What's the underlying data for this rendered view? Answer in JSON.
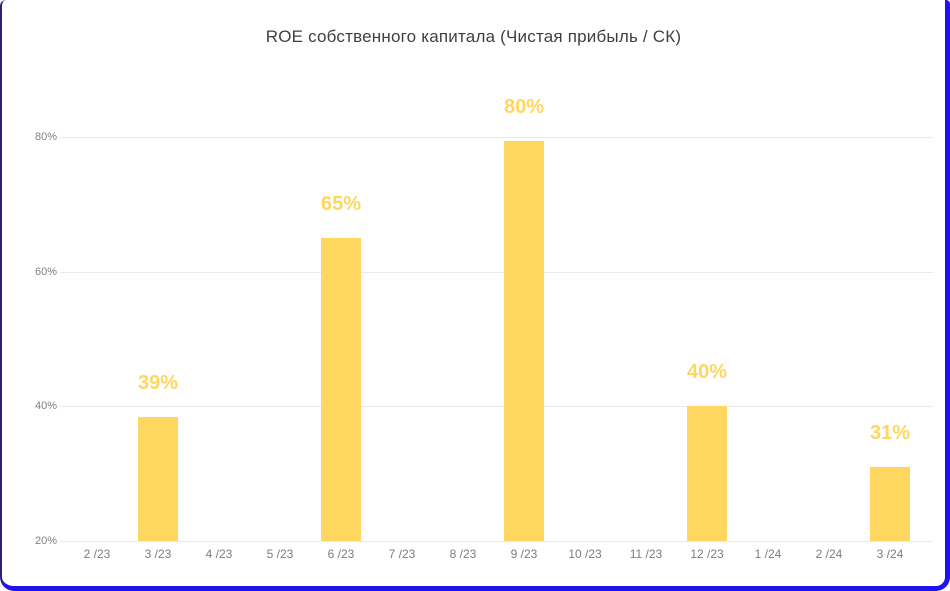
{
  "page": {
    "background_color": "#ffffff",
    "frame_border_color": "#1c13f0"
  },
  "chart_data": {
    "type": "bar",
    "title": "ROE собственного капитала (Чистая прибыль / СК)",
    "categories": [
      "2 /23",
      "3 /23",
      "4 /23",
      "5 /23",
      "6 /23",
      "7 /23",
      "8 /23",
      "9 /23",
      "10 /23",
      "11 /23",
      "12 /23",
      "1 /24",
      "2 /24",
      "3 /24"
    ],
    "series": [
      {
        "name": "ROE",
        "values": [
          null,
          38.5,
          null,
          null,
          65,
          null,
          null,
          79.5,
          null,
          null,
          40,
          null,
          null,
          31
        ],
        "data_labels": [
          null,
          "39%",
          null,
          null,
          "65%",
          null,
          null,
          "80%",
          null,
          null,
          "40%",
          null,
          null,
          "31%"
        ]
      }
    ],
    "y_ticks": [
      20,
      40,
      60,
      80
    ],
    "y_tick_labels": [
      "20%",
      "40%",
      "60%",
      "80%"
    ],
    "ylim": [
      20,
      100
    ],
    "grid": true,
    "legend_position": "none",
    "bar_color": "#ffd65f",
    "data_label_color": "#ffd65f",
    "axis_text_color": "#7d7d7d",
    "title_color": "#3f3f3f",
    "gridline_color": "#e9e9e9"
  }
}
